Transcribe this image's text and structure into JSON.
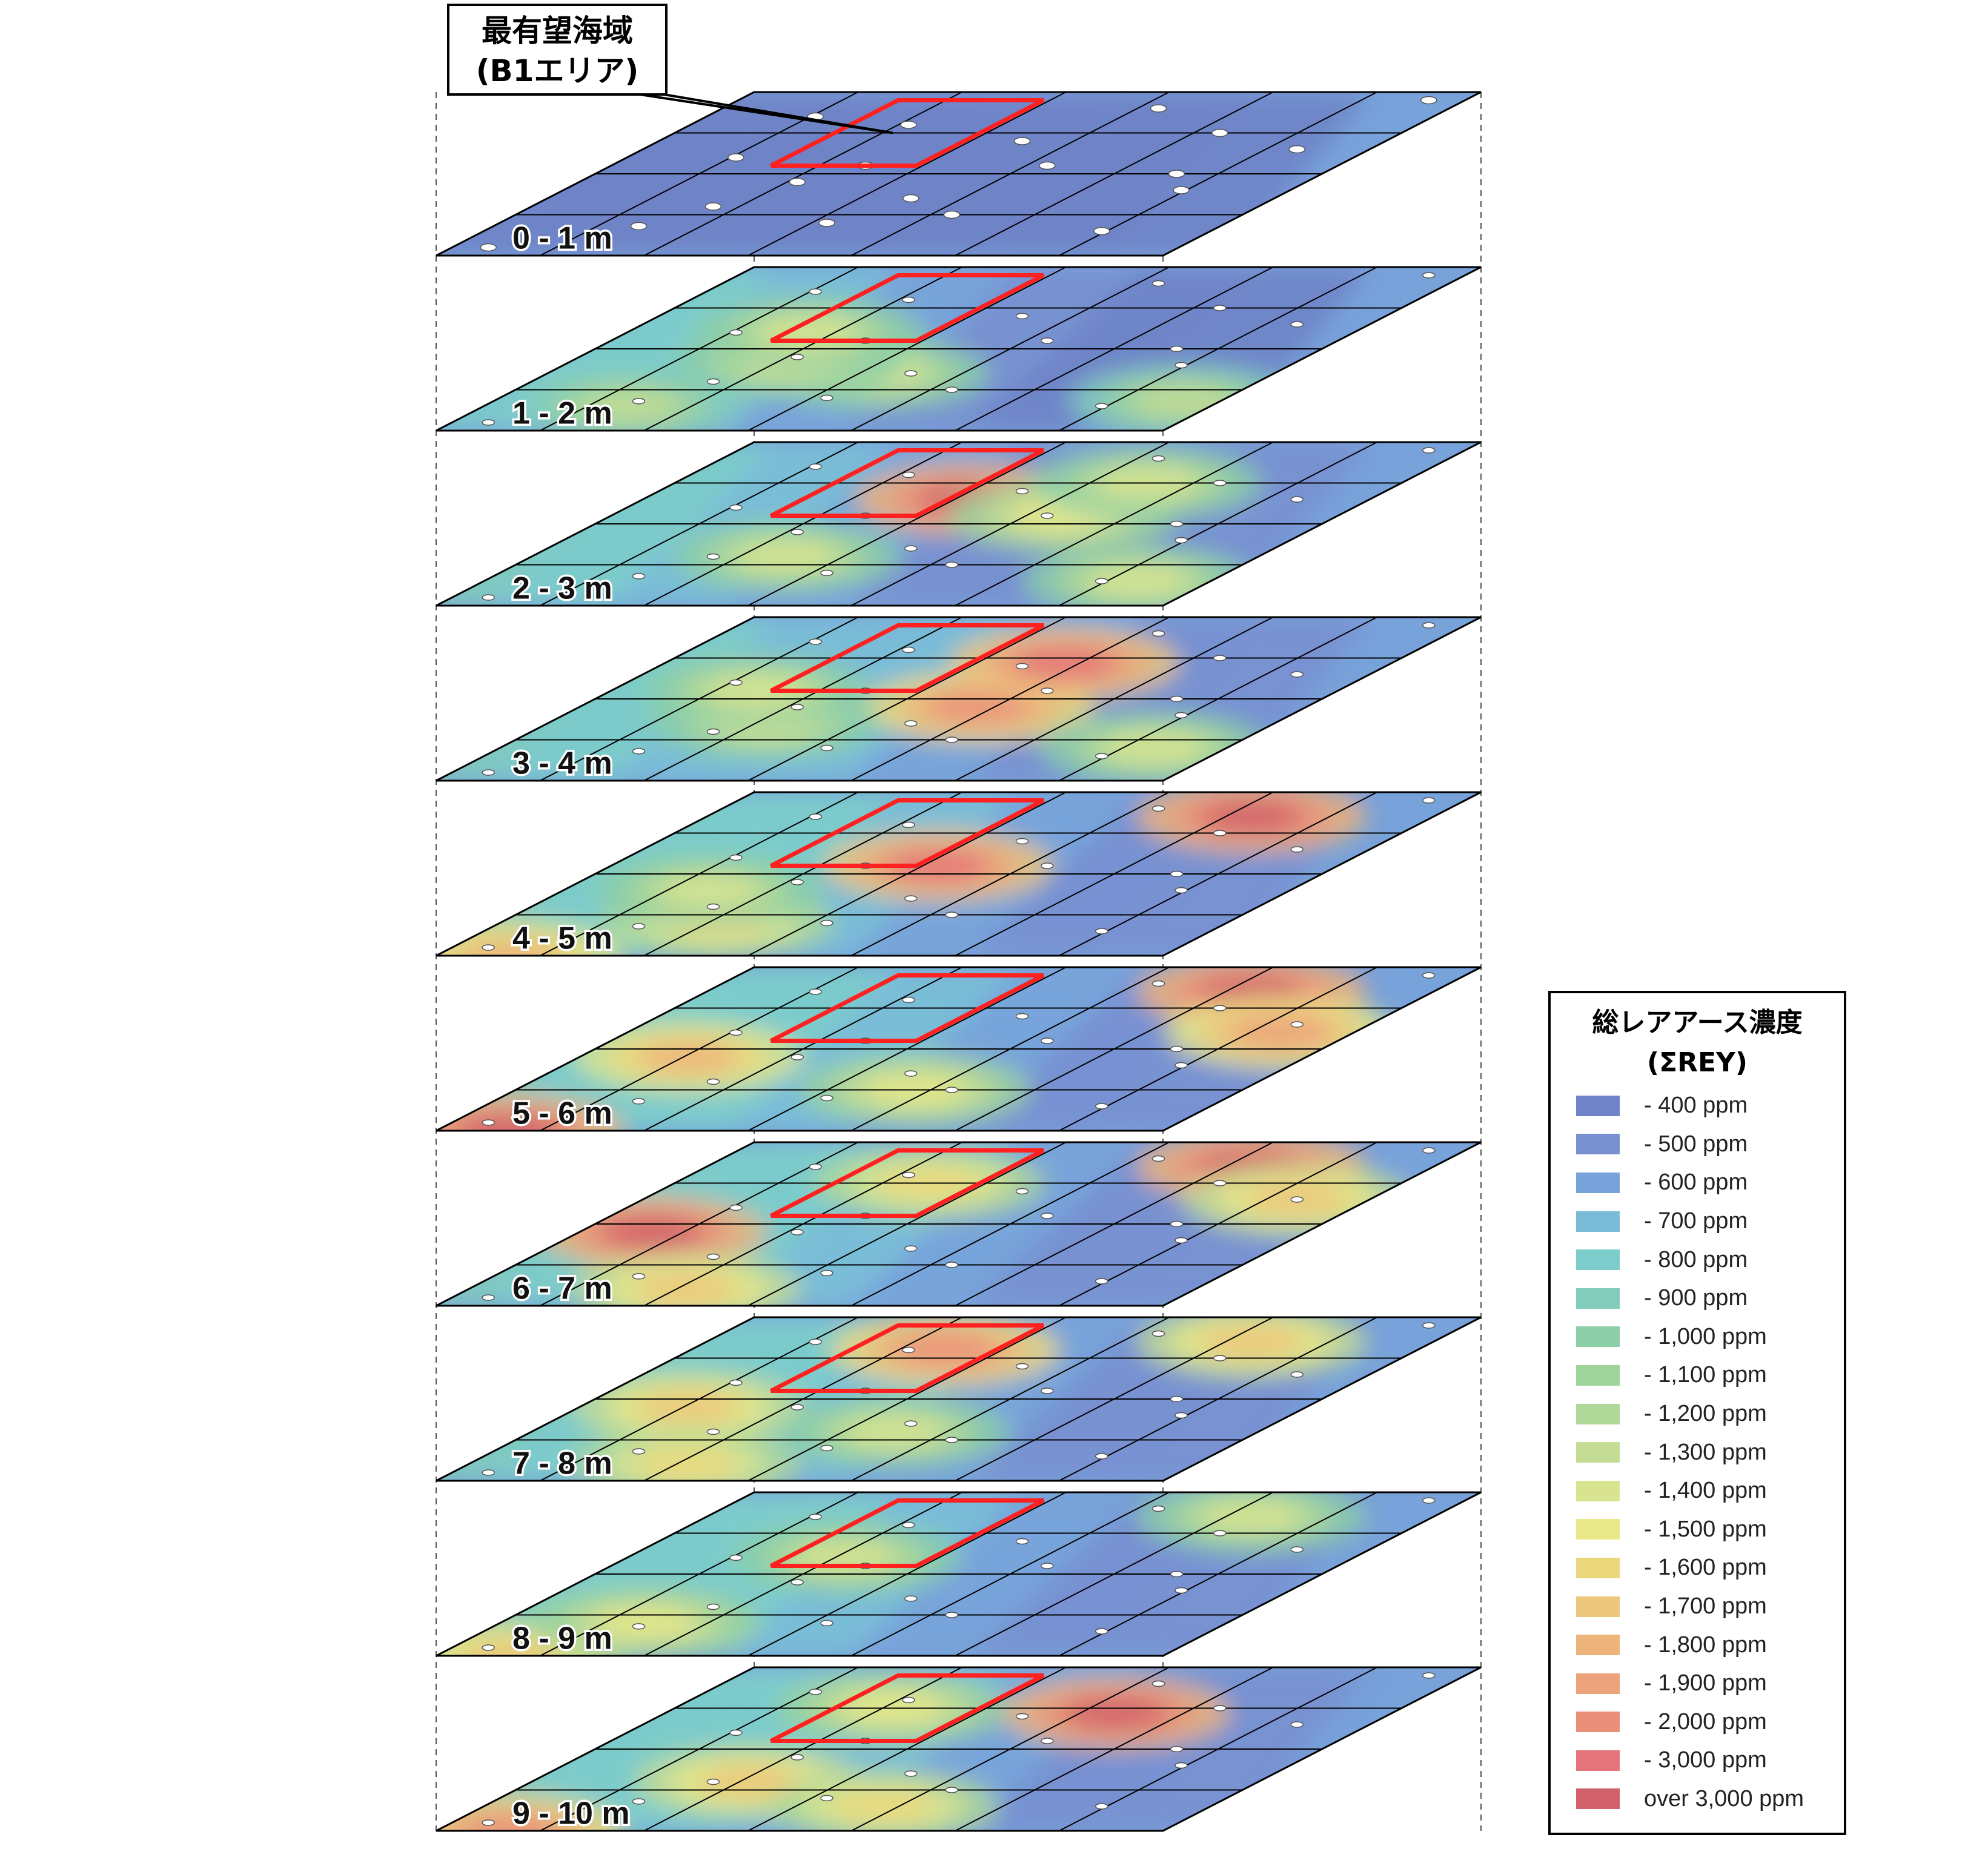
{
  "callout": {
    "line1": "最有望海域",
    "line2": "(B1エリア)"
  },
  "layers": [
    {
      "label": "0 - 1 m",
      "hotspots": [
        [
          0.4,
          0.5,
          -0.5
        ]
      ]
    },
    {
      "label": "1 - 2 m",
      "hotspots": [
        [
          0.18,
          0.95,
          0.2
        ],
        [
          0.35,
          0.45,
          0.25
        ],
        [
          0.42,
          0.3,
          0.4
        ],
        [
          0.6,
          0.25,
          0.35
        ],
        [
          0.15,
          0.2,
          0.2
        ]
      ]
    },
    {
      "label": "2 - 3 m",
      "hotspots": [
        [
          0.65,
          0.45,
          1.7
        ],
        [
          0.55,
          0.62,
          0.5
        ],
        [
          0.3,
          0.35,
          0.3
        ],
        [
          0.15,
          0.9,
          0.3
        ],
        [
          0.75,
          0.65,
          0.3
        ]
      ]
    },
    {
      "label": "3 - 4 m",
      "hotspots": [
        [
          0.45,
          0.55,
          1.35
        ],
        [
          0.72,
          0.55,
          1.5
        ],
        [
          0.2,
          0.9,
          0.35
        ],
        [
          0.35,
          0.3,
          0.35
        ],
        [
          0.55,
          0.2,
          0.3
        ]
      ]
    },
    {
      "label": "4 - 5 m",
      "hotspots": [
        [
          0.85,
          0.75,
          1.7
        ],
        [
          0.55,
          0.45,
          1.5
        ],
        [
          0.0,
          0.1,
          1.0
        ],
        [
          0.2,
          0.3,
          0.6
        ],
        [
          0.4,
          0.2,
          0.4
        ]
      ]
    },
    {
      "label": "5 - 6 m",
      "hotspots": [
        [
          0.85,
          0.75,
          1.9
        ],
        [
          0.0,
          0.1,
          1.6
        ],
        [
          0.45,
          0.15,
          1.0
        ],
        [
          0.6,
          0.9,
          1.2
        ],
        [
          0.25,
          0.55,
          0.5
        ]
      ]
    },
    {
      "label": "6 - 7 m",
      "hotspots": [
        [
          0.85,
          0.75,
          1.7
        ],
        [
          0.45,
          0.1,
          1.7
        ],
        [
          0.1,
          0.3,
          0.8
        ],
        [
          0.65,
          0.9,
          0.8
        ],
        [
          0.75,
          0.35,
          0.7
        ]
      ]
    },
    {
      "label": "7 - 8 m",
      "hotspots": [
        [
          0.85,
          0.75,
          0.8
        ],
        [
          0.8,
          0.35,
          1.3
        ],
        [
          0.45,
          0.15,
          0.9
        ],
        [
          0.1,
          0.3,
          0.7
        ],
        [
          0.3,
          0.5,
          0.3
        ]
      ]
    },
    {
      "label": "8 - 9 m",
      "hotspots": [
        [
          0.0,
          0.1,
          0.8
        ],
        [
          0.2,
          0.2,
          0.5
        ],
        [
          0.6,
          0.3,
          0.4
        ],
        [
          0.85,
          0.75,
          0.3
        ]
      ]
    },
    {
      "label": "9 - 10 m",
      "hotspots": [
        [
          0.72,
          0.62,
          1.75
        ],
        [
          0.0,
          0.1,
          1.3
        ],
        [
          0.3,
          0.3,
          0.8
        ],
        [
          0.75,
          0.3,
          0.5
        ],
        [
          0.15,
          0.55,
          0.6
        ]
      ]
    }
  ],
  "legend": {
    "title_line1": "総レアアース濃度",
    "title_line2": "(ΣREY)",
    "items": [
      {
        "label": "- 400 ppm",
        "color": "#6f84c8"
      },
      {
        "label": "- 500 ppm",
        "color": "#7890d0"
      },
      {
        "label": "- 600 ppm",
        "color": "#78a2da"
      },
      {
        "label": "- 700 ppm",
        "color": "#7abcd8"
      },
      {
        "label": "- 800 ppm",
        "color": "#7ccccc"
      },
      {
        "label": "- 900 ppm",
        "color": "#82ccbc"
      },
      {
        "label": "- 1,000 ppm",
        "color": "#8ccfa8"
      },
      {
        "label": "- 1,100 ppm",
        "color": "#9ed49c"
      },
      {
        "label": "- 1,200 ppm",
        "color": "#b0d898"
      },
      {
        "label": "- 1,300 ppm",
        "color": "#c4dc94"
      },
      {
        "label": "- 1,400 ppm",
        "color": "#d8e490"
      },
      {
        "label": "- 1,500 ppm",
        "color": "#e8e888"
      },
      {
        "label": "- 1,600 ppm",
        "color": "#ecd87c"
      },
      {
        "label": "- 1,700 ppm",
        "color": "#ecc67a"
      },
      {
        "label": "- 1,800 ppm",
        "color": "#ecb47a"
      },
      {
        "label": "- 1,900 ppm",
        "color": "#eca27a"
      },
      {
        "label": "- 2,000 ppm",
        "color": "#ea907a"
      },
      {
        "label": "- 3,000 ppm",
        "color": "#e4747a"
      },
      {
        "label": "over 3,000 ppm",
        "color": "#d0606a"
      }
    ]
  },
  "colors": {
    "highlight": "#ff2020",
    "grid": "#000000"
  },
  "sample_points": [
    [
      0.18,
      0.2
    ],
    [
      0.3,
      0.25
    ],
    [
      0.25,
      0.6
    ],
    [
      0.45,
      0.3
    ],
    [
      0.55,
      0.6
    ],
    [
      0.7,
      0.5
    ],
    [
      0.6,
      0.15
    ],
    [
      0.4,
      0.85
    ],
    [
      0.8,
      0.3
    ],
    [
      0.75,
      0.75
    ],
    [
      0.9,
      0.6
    ],
    [
      0.15,
      0.85
    ],
    [
      0.5,
      0.8
    ],
    [
      0.35,
      0.5
    ],
    [
      0.65,
      0.9
    ],
    [
      0.85,
      0.15
    ],
    [
      0.05,
      0.05
    ],
    [
      0.95,
      0.95
    ],
    [
      0.2,
      0.45
    ],
    [
      0.55,
      0.35
    ]
  ]
}
